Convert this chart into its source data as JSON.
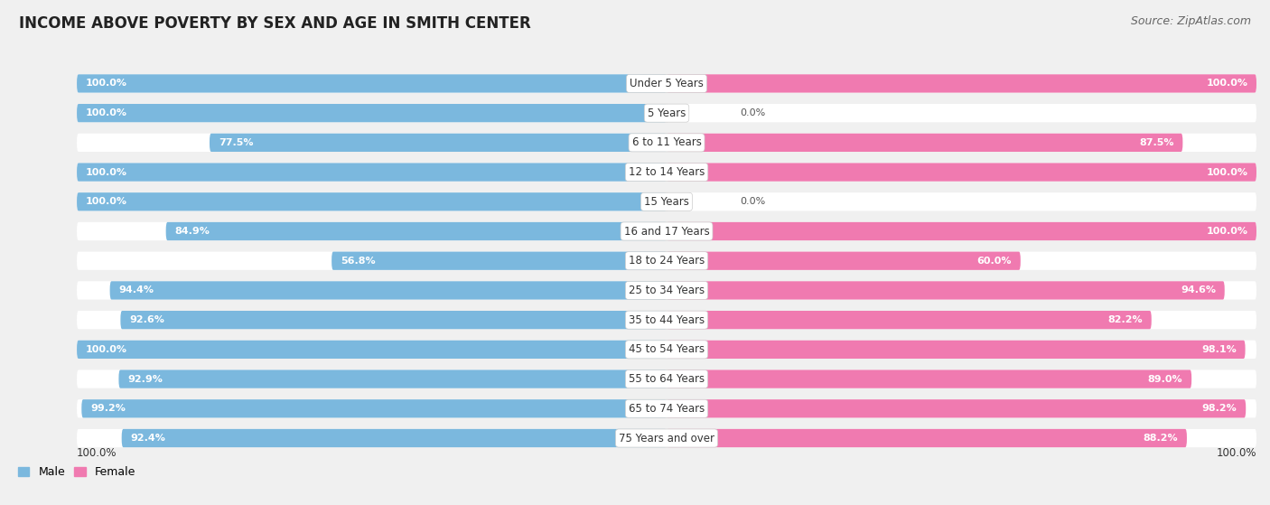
{
  "title": "INCOME ABOVE POVERTY BY SEX AND AGE IN SMITH CENTER",
  "source": "Source: ZipAtlas.com",
  "categories": [
    "Under 5 Years",
    "5 Years",
    "6 to 11 Years",
    "12 to 14 Years",
    "15 Years",
    "16 and 17 Years",
    "18 to 24 Years",
    "25 to 34 Years",
    "35 to 44 Years",
    "45 to 54 Years",
    "55 to 64 Years",
    "65 to 74 Years",
    "75 Years and over"
  ],
  "male_values": [
    100.0,
    100.0,
    77.5,
    100.0,
    100.0,
    84.9,
    56.8,
    94.4,
    92.6,
    100.0,
    92.9,
    99.2,
    92.4
  ],
  "female_values": [
    100.0,
    0.0,
    87.5,
    100.0,
    0.0,
    100.0,
    60.0,
    94.6,
    82.2,
    98.1,
    89.0,
    98.2,
    88.2
  ],
  "male_color": "#7bb8de",
  "male_color_light": "#c5ddf0",
  "female_color": "#f07ab0",
  "female_color_light": "#f9c0d8",
  "bg_color": "#f0f0f0",
  "bar_bg_color": "#ffffff",
  "title_fontsize": 12,
  "label_fontsize": 8.5,
  "source_fontsize": 9,
  "legend_fontsize": 9,
  "value_fontsize": 8
}
